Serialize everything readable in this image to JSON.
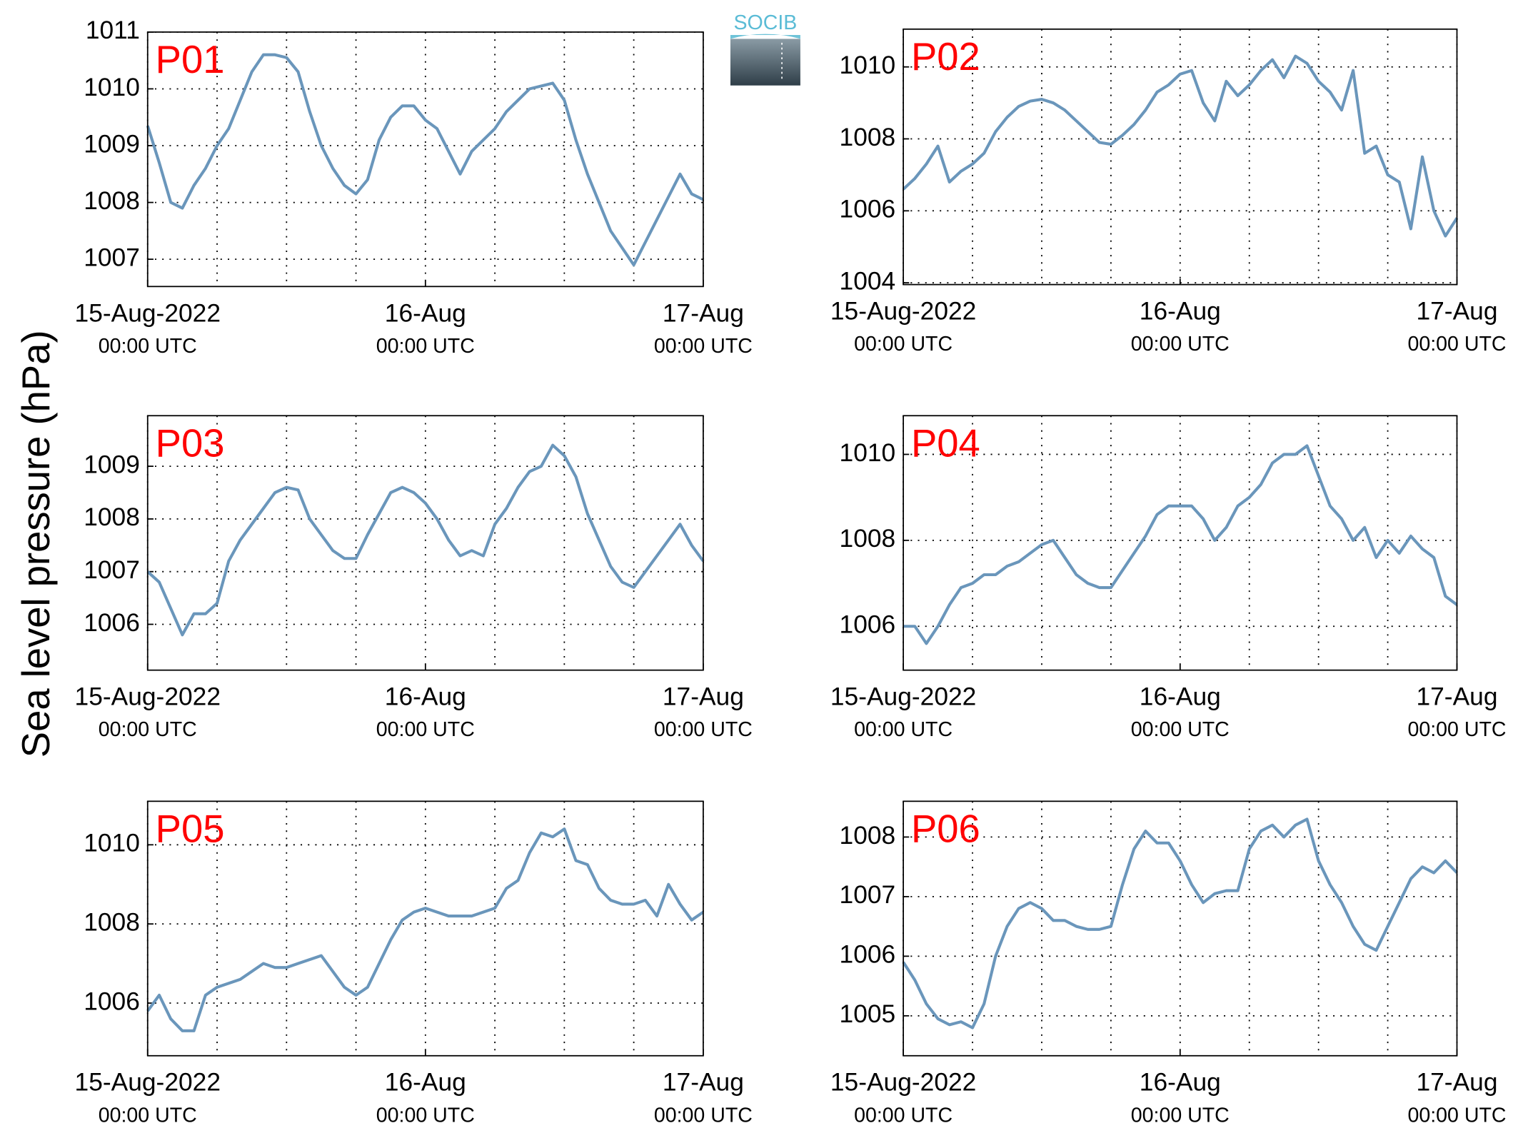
{
  "ylabel": "Sea level pressure (hPa)",
  "logo": "SOCIB",
  "chart_data": [
    {
      "type": "line",
      "title": "P01",
      "color": "#6a96bb",
      "grid": true,
      "x": [
        0,
        1,
        2,
        3,
        4,
        5,
        6,
        7,
        8,
        9,
        10,
        11,
        12,
        13,
        14,
        15,
        16,
        17,
        18,
        19,
        20,
        21,
        22,
        23,
        24,
        25,
        26,
        27,
        28,
        29,
        30,
        31,
        32,
        33,
        34,
        35,
        36,
        37,
        38,
        39,
        40,
        41,
        42,
        43,
        44,
        45,
        46,
        47,
        48
      ],
      "values": [
        1009.35,
        1008.7,
        1008.0,
        1007.9,
        1008.3,
        1008.6,
        1009.0,
        1009.3,
        1009.8,
        1010.3,
        1010.6,
        1010.6,
        1010.55,
        1010.3,
        1009.6,
        1009.0,
        1008.6,
        1008.3,
        1008.15,
        1008.4,
        1009.1,
        1009.5,
        1009.7,
        1009.7,
        1009.45,
        1009.3,
        1008.9,
        1008.5,
        1008.9,
        1009.1,
        1009.3,
        1009.6,
        1009.8,
        1010.0,
        1010.05,
        1010.1,
        1009.8,
        1009.1,
        1008.5,
        1008.0,
        1007.5,
        1007.2,
        1006.9,
        1007.3,
        1007.7,
        1008.1,
        1008.5,
        1008.15,
        1008.05
      ],
      "xlim": [
        0,
        48
      ],
      "ylim": [
        1006.52,
        1011
      ],
      "yticks": [
        1007,
        1008,
        1009,
        1010,
        1011
      ],
      "xticks": [
        {
          "value": 0,
          "label": "15-Aug-2022",
          "sublabel": "00:00 UTC"
        },
        {
          "value": 24,
          "label": "16-Aug",
          "sublabel": "00:00 UTC"
        },
        {
          "value": 48,
          "label": "17-Aug",
          "sublabel": "00:00 UTC"
        }
      ],
      "xgrid": [
        6,
        12,
        18,
        30,
        36,
        42
      ]
    },
    {
      "type": "line",
      "title": "P02",
      "color": "#6a96bb",
      "grid": true,
      "x": [
        0,
        1,
        2,
        3,
        4,
        5,
        6,
        7,
        8,
        9,
        10,
        11,
        12,
        13,
        14,
        15,
        16,
        17,
        18,
        19,
        20,
        21,
        22,
        23,
        24,
        25,
        26,
        27,
        28,
        29,
        30,
        31,
        32,
        33,
        34,
        35,
        36,
        37,
        38,
        39,
        40,
        41,
        42,
        43,
        44,
        45,
        46,
        47,
        48
      ],
      "values": [
        1006.6,
        1006.9,
        1007.3,
        1007.8,
        1006.8,
        1007.1,
        1007.3,
        1007.6,
        1008.2,
        1008.6,
        1008.9,
        1009.05,
        1009.1,
        1009.0,
        1008.8,
        1008.5,
        1008.2,
        1007.9,
        1007.85,
        1008.1,
        1008.4,
        1008.8,
        1009.3,
        1009.5,
        1009.8,
        1009.9,
        1009.0,
        1008.5,
        1009.6,
        1009.2,
        1009.5,
        1009.9,
        1010.2,
        1009.7,
        1010.3,
        1010.1,
        1009.6,
        1009.3,
        1008.8,
        1009.9,
        1007.6,
        1007.8,
        1007.0,
        1006.8,
        1005.5,
        1007.5,
        1006.0,
        1005.3,
        1005.8
      ],
      "xlim": [
        0,
        48
      ],
      "ylim": [
        1003.95,
        1011.05
      ],
      "yticks": [
        1004,
        1006,
        1008,
        1010
      ],
      "xticks": [
        {
          "value": 0,
          "label": "15-Aug-2022",
          "sublabel": "00:00 UTC"
        },
        {
          "value": 24,
          "label": "16-Aug",
          "sublabel": "00:00 UTC"
        },
        {
          "value": 48,
          "label": "17-Aug",
          "sublabel": "00:00 UTC"
        }
      ],
      "xgrid": [
        6,
        12,
        18,
        30,
        36,
        42
      ]
    },
    {
      "type": "line",
      "title": "P03",
      "color": "#6a96bb",
      "grid": true,
      "x": [
        0,
        1,
        2,
        3,
        4,
        5,
        6,
        7,
        8,
        9,
        10,
        11,
        12,
        13,
        14,
        15,
        16,
        17,
        18,
        19,
        20,
        21,
        22,
        23,
        24,
        25,
        26,
        27,
        28,
        29,
        30,
        31,
        32,
        33,
        34,
        35,
        36,
        37,
        38,
        39,
        40,
        41,
        42,
        43,
        44,
        45,
        46,
        47,
        48
      ],
      "values": [
        1007.0,
        1006.8,
        1006.3,
        1005.8,
        1006.2,
        1006.2,
        1006.4,
        1007.2,
        1007.6,
        1007.9,
        1008.2,
        1008.5,
        1008.6,
        1008.55,
        1008.0,
        1007.7,
        1007.4,
        1007.25,
        1007.25,
        1007.7,
        1008.1,
        1008.5,
        1008.6,
        1008.5,
        1008.3,
        1008.0,
        1007.6,
        1007.3,
        1007.4,
        1007.3,
        1007.9,
        1008.2,
        1008.6,
        1008.9,
        1009.0,
        1009.4,
        1009.2,
        1008.8,
        1008.1,
        1007.6,
        1007.1,
        1006.8,
        1006.7,
        1007.0,
        1007.3,
        1007.6,
        1007.9,
        1007.5,
        1007.2
      ],
      "xlim": [
        0,
        48
      ],
      "ylim": [
        1005.13,
        1009.96
      ],
      "yticks": [
        1006,
        1007,
        1008,
        1009
      ],
      "xticks": [
        {
          "value": 0,
          "label": "15-Aug-2022",
          "sublabel": "00:00 UTC"
        },
        {
          "value": 24,
          "label": "16-Aug",
          "sublabel": "00:00 UTC"
        },
        {
          "value": 48,
          "label": "17-Aug",
          "sublabel": "00:00 UTC"
        }
      ],
      "xgrid": [
        6,
        12,
        18,
        30,
        36,
        42
      ]
    },
    {
      "type": "line",
      "title": "P04",
      "color": "#6a96bb",
      "grid": true,
      "x": [
        0,
        1,
        2,
        3,
        4,
        5,
        6,
        7,
        8,
        9,
        10,
        11,
        12,
        13,
        14,
        15,
        16,
        17,
        18,
        19,
        20,
        21,
        22,
        23,
        24,
        25,
        26,
        27,
        28,
        29,
        30,
        31,
        32,
        33,
        34,
        35,
        36,
        37,
        38,
        39,
        40,
        41,
        42,
        43,
        44,
        45,
        46,
        47,
        48
      ],
      "values": [
        1006.0,
        1006.0,
        1005.6,
        1006.0,
        1006.5,
        1006.9,
        1007.0,
        1007.2,
        1007.2,
        1007.4,
        1007.5,
        1007.7,
        1007.9,
        1008.0,
        1007.6,
        1007.2,
        1007.0,
        1006.9,
        1006.9,
        1007.3,
        1007.7,
        1008.1,
        1008.6,
        1008.8,
        1008.8,
        1008.8,
        1008.5,
        1008.0,
        1008.3,
        1008.8,
        1009.0,
        1009.3,
        1009.8,
        1010.0,
        1010.0,
        1010.2,
        1009.5,
        1008.8,
        1008.5,
        1008.0,
        1008.3,
        1007.6,
        1008.0,
        1007.7,
        1008.1,
        1007.8,
        1007.6,
        1006.7,
        1006.5
      ],
      "xlim": [
        0,
        48
      ],
      "ylim": [
        1004.98,
        1010.9
      ],
      "yticks": [
        1006,
        1008,
        1010
      ],
      "xticks": [
        {
          "value": 0,
          "label": "15-Aug-2022",
          "sublabel": "00:00 UTC"
        },
        {
          "value": 24,
          "label": "16-Aug",
          "sublabel": "00:00 UTC"
        },
        {
          "value": 48,
          "label": "17-Aug",
          "sublabel": "00:00 UTC"
        }
      ],
      "xgrid": [
        6,
        12,
        18,
        30,
        36,
        42
      ]
    },
    {
      "type": "line",
      "title": "P05",
      "color": "#6a96bb",
      "grid": true,
      "x": [
        0,
        1,
        2,
        3,
        4,
        5,
        6,
        7,
        8,
        9,
        10,
        11,
        12,
        13,
        14,
        15,
        16,
        17,
        18,
        19,
        20,
        21,
        22,
        23,
        24,
        25,
        26,
        27,
        28,
        29,
        30,
        31,
        32,
        33,
        34,
        35,
        36,
        37,
        38,
        39,
        40,
        41,
        42,
        43,
        44,
        45,
        46,
        47,
        48
      ],
      "values": [
        1005.8,
        1006.2,
        1005.6,
        1005.3,
        1005.3,
        1006.2,
        1006.4,
        1006.5,
        1006.6,
        1006.8,
        1007.0,
        1006.9,
        1006.9,
        1007.0,
        1007.1,
        1007.2,
        1006.8,
        1006.4,
        1006.2,
        1006.4,
        1007.0,
        1007.6,
        1008.1,
        1008.3,
        1008.4,
        1008.3,
        1008.2,
        1008.2,
        1008.2,
        1008.3,
        1008.4,
        1008.9,
        1009.1,
        1009.8,
        1010.3,
        1010.2,
        1010.4,
        1009.6,
        1009.5,
        1008.9,
        1008.6,
        1008.5,
        1008.5,
        1008.6,
        1008.2,
        1009.0,
        1008.5,
        1008.1,
        1008.3
      ],
      "xlim": [
        0,
        48
      ],
      "ylim": [
        1004.67,
        1011.1
      ],
      "yticks": [
        1006,
        1008,
        1010
      ],
      "xticks": [
        {
          "value": 0,
          "label": "15-Aug-2022",
          "sublabel": "00:00 UTC"
        },
        {
          "value": 24,
          "label": "16-Aug",
          "sublabel": "00:00 UTC"
        },
        {
          "value": 48,
          "label": "17-Aug",
          "sublabel": "00:00 UTC"
        }
      ],
      "xgrid": [
        6,
        12,
        18,
        30,
        36,
        42
      ]
    },
    {
      "type": "line",
      "title": "P06",
      "color": "#6a96bb",
      "grid": true,
      "x": [
        0,
        1,
        2,
        3,
        4,
        5,
        6,
        7,
        8,
        9,
        10,
        11,
        12,
        13,
        14,
        15,
        16,
        17,
        18,
        19,
        20,
        21,
        22,
        23,
        24,
        25,
        26,
        27,
        28,
        29,
        30,
        31,
        32,
        33,
        34,
        35,
        36,
        37,
        38,
        39,
        40,
        41,
        42,
        43,
        44,
        45,
        46,
        47,
        48
      ],
      "values": [
        1005.9,
        1005.6,
        1005.2,
        1004.95,
        1004.85,
        1004.9,
        1004.8,
        1005.2,
        1006.0,
        1006.5,
        1006.8,
        1006.9,
        1006.8,
        1006.6,
        1006.6,
        1006.5,
        1006.45,
        1006.45,
        1006.5,
        1007.2,
        1007.8,
        1008.1,
        1007.9,
        1007.9,
        1007.6,
        1007.2,
        1006.9,
        1007.05,
        1007.1,
        1007.1,
        1007.8,
        1008.1,
        1008.2,
        1008.0,
        1008.2,
        1008.3,
        1007.6,
        1007.2,
        1006.9,
        1006.5,
        1006.2,
        1006.1,
        1006.5,
        1006.9,
        1007.3,
        1007.5,
        1007.4,
        1007.6,
        1007.4
      ],
      "xlim": [
        0,
        48
      ],
      "ylim": [
        1004.33,
        1008.6
      ],
      "yticks": [
        1005,
        1006,
        1007,
        1008
      ],
      "xticks": [
        {
          "value": 0,
          "label": "15-Aug-2022",
          "sublabel": "00:00 UTC"
        },
        {
          "value": 24,
          "label": "16-Aug",
          "sublabel": "00:00 UTC"
        },
        {
          "value": 48,
          "label": "17-Aug",
          "sublabel": "00:00 UTC"
        }
      ],
      "xgrid": [
        6,
        12,
        18,
        30,
        36,
        42
      ]
    }
  ]
}
